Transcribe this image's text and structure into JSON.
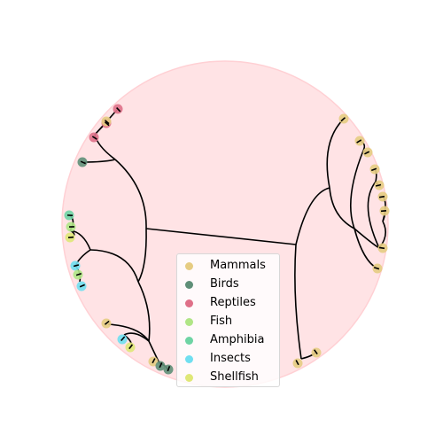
{
  "background_color": "#ffe3e5",
  "link_color": "#000000",
  "categories": [
    {
      "name": "Mammals",
      "color": "#e6cc82"
    },
    {
      "name": "Birds",
      "color": "#5f8f78"
    },
    {
      "name": "Reptiles",
      "color": "#df7088"
    },
    {
      "name": "Fish",
      "color": "#b0e586"
    },
    {
      "name": "Amphibia",
      "color": "#6ed4a4"
    },
    {
      "name": "Insects",
      "color": "#70dff0"
    },
    {
      "name": "Shellfish",
      "color": "#dfe777"
    }
  ],
  "leaves": [
    {
      "category": "Reptiles"
    },
    {
      "category": "Reptiles"
    },
    {
      "category": "Reptiles"
    },
    {
      "category": "Mammals"
    },
    {
      "category": "Birds"
    },
    {
      "category": "Amphibia"
    },
    {
      "category": "Fish"
    },
    {
      "category": "Shellfish"
    },
    {
      "category": "Insects"
    },
    {
      "category": "Fish"
    },
    {
      "category": "Insects"
    },
    {
      "category": "Mammals"
    },
    {
      "category": "Insects"
    },
    {
      "category": "Shellfish"
    },
    {
      "category": "Mammals"
    },
    {
      "category": "Birds"
    },
    {
      "category": "Birds"
    },
    {
      "category": "Mammals"
    },
    {
      "category": "Mammals"
    },
    {
      "category": "Mammals"
    },
    {
      "category": "Mammals"
    },
    {
      "category": "Mammals"
    },
    {
      "category": "Mammals"
    },
    {
      "category": "Mammals"
    },
    {
      "category": "Mammals"
    },
    {
      "category": "Mammals"
    },
    {
      "category": "Mammals"
    },
    {
      "category": "Mammals"
    }
  ]
}
